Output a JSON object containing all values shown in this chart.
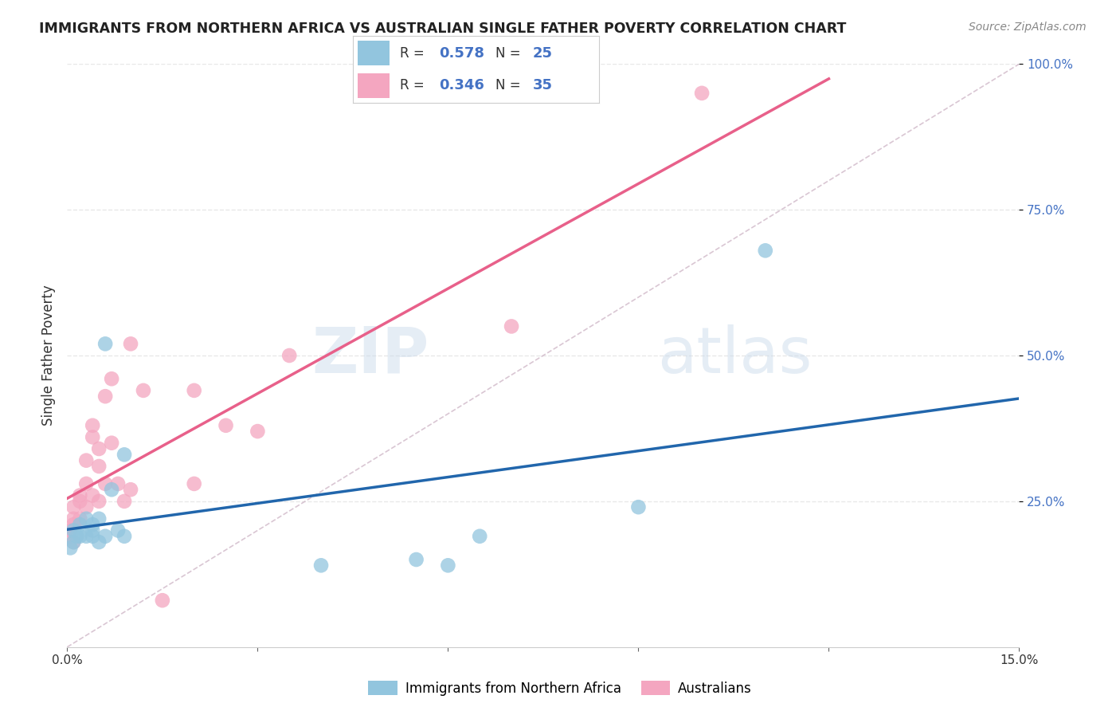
{
  "title": "IMMIGRANTS FROM NORTHERN AFRICA VS AUSTRALIAN SINGLE FATHER POVERTY CORRELATION CHART",
  "source": "Source: ZipAtlas.com",
  "ylabel": "Single Father Poverty",
  "x_min": 0.0,
  "x_max": 0.15,
  "y_min": 0.0,
  "y_max": 1.0,
  "blue_color": "#92c5de",
  "pink_color": "#f4a6c0",
  "blue_line_color": "#2166ac",
  "pink_line_color": "#e8608a",
  "legend_blue_label": "Immigrants from Northern Africa",
  "legend_pink_label": "Australians",
  "R_blue": 0.578,
  "N_blue": 25,
  "R_pink": 0.346,
  "N_pink": 35,
  "blue_scatter_x": [
    0.0005,
    0.001,
    0.001,
    0.0015,
    0.002,
    0.002,
    0.003,
    0.003,
    0.004,
    0.004,
    0.004,
    0.005,
    0.005,
    0.006,
    0.006,
    0.007,
    0.008,
    0.009,
    0.009,
    0.04,
    0.055,
    0.06,
    0.065,
    0.09,
    0.11
  ],
  "blue_scatter_y": [
    0.17,
    0.18,
    0.2,
    0.19,
    0.19,
    0.21,
    0.19,
    0.22,
    0.2,
    0.19,
    0.21,
    0.18,
    0.22,
    0.19,
    0.52,
    0.27,
    0.2,
    0.19,
    0.33,
    0.14,
    0.15,
    0.14,
    0.19,
    0.24,
    0.68
  ],
  "pink_scatter_x": [
    0.0003,
    0.0005,
    0.001,
    0.001,
    0.001,
    0.001,
    0.002,
    0.002,
    0.002,
    0.003,
    0.003,
    0.003,
    0.004,
    0.004,
    0.004,
    0.005,
    0.005,
    0.005,
    0.006,
    0.006,
    0.007,
    0.007,
    0.008,
    0.009,
    0.01,
    0.01,
    0.012,
    0.015,
    0.02,
    0.02,
    0.025,
    0.03,
    0.035,
    0.07,
    0.1
  ],
  "pink_scatter_y": [
    0.19,
    0.2,
    0.18,
    0.21,
    0.22,
    0.24,
    0.22,
    0.25,
    0.26,
    0.24,
    0.28,
    0.32,
    0.26,
    0.36,
    0.38,
    0.25,
    0.31,
    0.34,
    0.28,
    0.43,
    0.35,
    0.46,
    0.28,
    0.25,
    0.27,
    0.52,
    0.44,
    0.08,
    0.28,
    0.44,
    0.38,
    0.37,
    0.5,
    0.55,
    0.95
  ],
  "watermark_zip": "ZIP",
  "watermark_atlas": "atlas",
  "background_color": "#ffffff",
  "grid_color": "#e8e8e8",
  "ref_line_color": "#d0b8c8"
}
